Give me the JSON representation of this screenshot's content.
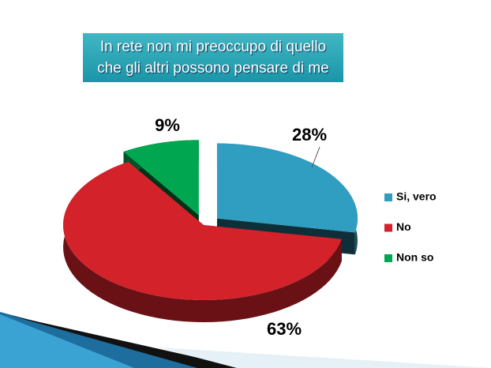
{
  "chart_data": {
    "type": "pie",
    "title": "In rete non mi preoccupo di quello che gli altri possono pensare di me",
    "categories": [
      "Si, vero",
      "No",
      "Non so"
    ],
    "values": [
      28,
      63,
      9
    ],
    "value_labels": [
      "28%",
      "63%",
      "9%"
    ],
    "colors": [
      "#2f9ec1",
      "#d3222a",
      "#00a650"
    ],
    "legend": "right"
  }
}
